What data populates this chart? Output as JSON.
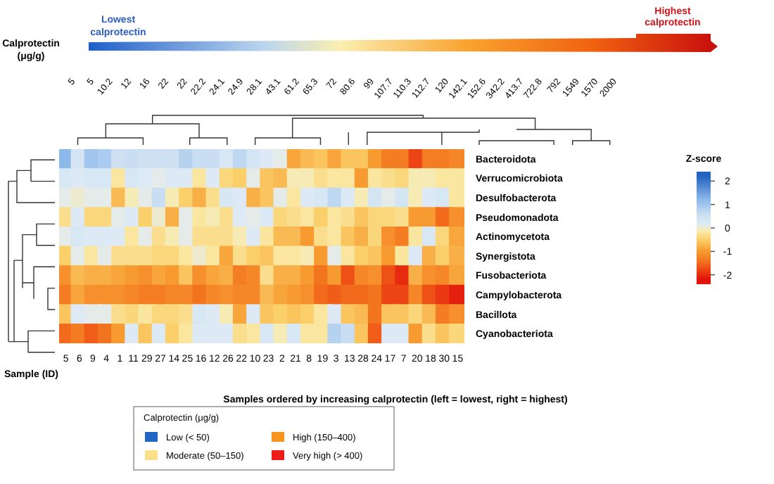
{
  "chart_data": {
    "type": "heatmap",
    "xlabel": "Samples ordered by increasing calprotectin (left = lowest, right = highest)",
    "x2label": "Calprotectin (μg/g)",
    "clabel": "Z-score",
    "legend_title": "Calprotectin (μg/g)",
    "annotations": [
      "Sample (ID)",
      "Lowest calprotectin",
      "Highest calprotectin",
      "Low (< 50)",
      "Moderate (50–150)",
      "High (150–400)",
      "Very high (> 400)",
      "5",
      "5",
      "10.2",
      "12",
      "16",
      "22",
      "22",
      "22.2",
      "24.1",
      "24.9",
      "28.1",
      "43.1",
      "61.2",
      "65.3",
      "72",
      "80.6",
      "99",
      "107.7",
      "110.3",
      "112.7",
      "120",
      "142.1",
      "152.6",
      "342.2",
      "413.7",
      "722.8",
      "792",
      "1549",
      "1570",
      "2000"
    ],
    "categories": [
      "5",
      "6",
      "9",
      "4",
      "1",
      "11",
      "29",
      "27",
      "14",
      "25",
      "16",
      "12",
      "26",
      "22",
      "10",
      "23",
      "2",
      "21",
      "8",
      "19",
      "3",
      "13",
      "28",
      "24",
      "17",
      "7",
      "20",
      "18",
      "30",
      "15"
    ],
    "y_categories": [
      "Bacteroidota",
      "Verrucomicrobiota",
      "Desulfobacterota",
      "Pseudomonadota",
      "Actinomycetota",
      "Synergistota",
      "Fusobacteriota",
      "Campylobacterota",
      "Bacillota",
      "Cyanobacteriota"
    ],
    "cells": [
      [
        1.2,
        0.4,
        1.0,
        0.9,
        0.5,
        0.6,
        0.5,
        0.5,
        0.5,
        0.8,
        0.6,
        0.6,
        0.3,
        0.7,
        0.4,
        0.2,
        0.1,
        -0.9,
        -0.7,
        -0.6,
        -0.9,
        -0.6,
        -0.6,
        -1.0,
        -1.3,
        -1.3,
        -1.8,
        -1.3,
        -1.3,
        -1.2
      ],
      [
        0.3,
        0.2,
        0.3,
        0.3,
        -0.2,
        0.3,
        0.2,
        0.1,
        0.2,
        0.2,
        -0.2,
        0.2,
        -0.4,
        -0.5,
        0.1,
        -0.6,
        -0.7,
        -0.1,
        -0.1,
        -0.3,
        -0.2,
        -0.2,
        -1.0,
        -0.2,
        -0.3,
        -0.4,
        -0.1,
        -0.1,
        -0.2,
        -0.2
      ],
      [
        0.1,
        0.0,
        0.1,
        0.1,
        -0.7,
        -0.1,
        0.1,
        0.6,
        -0.1,
        -0.5,
        -0.8,
        -0.3,
        0.3,
        0.2,
        -0.8,
        -0.6,
        0.1,
        -0.2,
        0.2,
        0.3,
        0.7,
        0.2,
        -0.1,
        0.4,
        0.1,
        0.4,
        -0.1,
        0.2,
        0.3,
        -0.2
      ],
      [
        -0.3,
        0.2,
        -0.4,
        -0.4,
        0.1,
        0.2,
        -0.5,
        0.0,
        -0.8,
        0.1,
        -0.2,
        -0.1,
        -0.3,
        0.2,
        0.1,
        0.2,
        -0.4,
        -0.3,
        -0.2,
        -0.5,
        -0.2,
        -0.3,
        -0.6,
        -0.4,
        -0.4,
        -0.3,
        -1.0,
        -1.0,
        -1.5,
        -1.1
      ],
      [
        0.1,
        0.3,
        0.2,
        0.2,
        0.2,
        -0.2,
        0.1,
        -0.3,
        -0.1,
        0.1,
        -0.3,
        -0.3,
        -0.3,
        -0.1,
        0.2,
        -0.2,
        -0.7,
        -0.7,
        -1.0,
        -0.3,
        -0.2,
        -0.6,
        -0.8,
        -0.4,
        -1.1,
        -1.3,
        -0.2,
        0.3,
        -0.4,
        -0.9
      ],
      [
        -0.5,
        0.1,
        -0.2,
        0.1,
        -0.3,
        -0.3,
        -0.3,
        -0.4,
        -0.4,
        -0.2,
        0.0,
        -0.2,
        -0.9,
        -0.3,
        -0.5,
        -0.6,
        -0.2,
        -0.2,
        -0.1,
        -1.0,
        0.1,
        -0.2,
        -0.5,
        -0.6,
        -1.0,
        -0.2,
        0.2,
        -0.8,
        -0.5,
        -0.8
      ],
      [
        -1.1,
        -0.7,
        -0.8,
        -0.8,
        -0.9,
        -1.0,
        -1.1,
        -0.9,
        -1.0,
        -0.6,
        -1.1,
        -0.9,
        -0.8,
        -1.3,
        -1.2,
        -0.3,
        -0.8,
        -0.8,
        -1.0,
        -1.4,
        -1.0,
        -1.7,
        -1.2,
        -1.1,
        -1.7,
        -2.0,
        -0.8,
        -1.1,
        -1.2,
        -0.9
      ],
      [
        -1.3,
        -0.9,
        -1.1,
        -1.1,
        -1.1,
        -1.2,
        -1.3,
        -1.3,
        -1.2,
        -1.2,
        -1.4,
        -1.2,
        -1.1,
        -1.2,
        -1.2,
        -0.7,
        -0.9,
        -1.0,
        -1.1,
        -1.5,
        -1.6,
        -1.5,
        -1.5,
        -1.4,
        -1.8,
        -1.8,
        -1.2,
        -1.7,
        -1.9,
        -2.1
      ],
      [
        -0.6,
        0.2,
        0.1,
        0.1,
        -0.3,
        -0.4,
        -0.2,
        -0.4,
        -0.4,
        -0.3,
        0.3,
        0.2,
        -0.1,
        -0.9,
        0.2,
        -0.6,
        -0.5,
        -0.6,
        -0.5,
        -0.2,
        0.2,
        -0.6,
        -0.7,
        -1.4,
        -0.6,
        -0.6,
        -0.4,
        -0.7,
        -1.3,
        -1.1
      ],
      [
        -1.5,
        -1.3,
        -1.6,
        -1.4,
        -1.0,
        0.2,
        -0.6,
        0.2,
        -0.5,
        -0.2,
        0.2,
        0.2,
        0.2,
        -0.3,
        -0.2,
        0.3,
        -0.1,
        0.3,
        -0.2,
        -0.2,
        0.8,
        0.6,
        -0.6,
        -1.6,
        0.2,
        0.2,
        -1.0,
        -0.3,
        -0.6,
        -0.4
      ]
    ],
    "clim": [
      -2.4,
      2.4
    ],
    "cticks": [
      -2,
      -1,
      0,
      1,
      2
    ]
  }
}
